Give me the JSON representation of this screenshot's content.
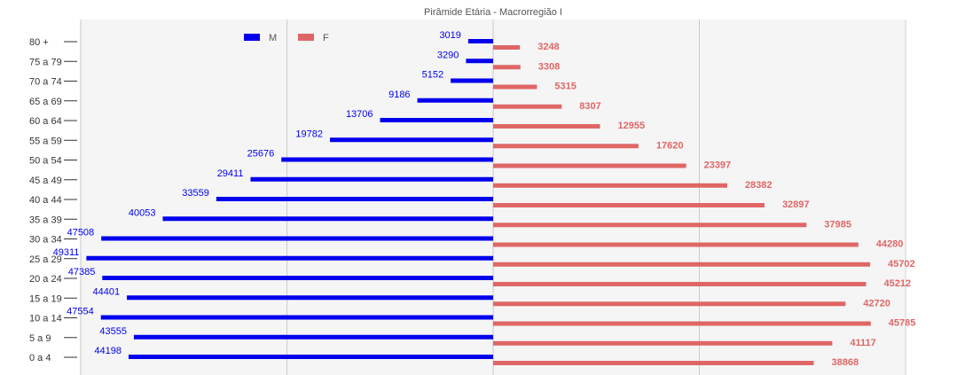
{
  "chart_data": {
    "type": "bar",
    "orientation": "horizontal-pyramid",
    "title": "Pirâmide Etária - Macrorregião I",
    "categories": [
      "0 a 4",
      "5 a 9",
      "10 a 14",
      "15 a 19",
      "20 a 24",
      "25 a 29",
      "30 a 34",
      "35 a 39",
      "40 a 44",
      "45 a 49",
      "50 a 54",
      "55 a 59",
      "60 a 64",
      "65 a 69",
      "70 a 74",
      "75 a 79",
      "80 +"
    ],
    "series": [
      {
        "name": "M",
        "color": "#0000ee",
        "values": [
          44198,
          43555,
          47554,
          44401,
          47385,
          49311,
          47508,
          40053,
          33559,
          29411,
          25676,
          19782,
          13706,
          9186,
          5152,
          3290,
          3019
        ]
      },
      {
        "name": "F",
        "color": "#e06666",
        "values": [
          38868,
          41117,
          45785,
          42720,
          45212,
          45702,
          44280,
          37985,
          32897,
          28382,
          23397,
          17620,
          12955,
          8307,
          5315,
          3308,
          3248
        ]
      }
    ],
    "legend_position": "top-left",
    "grid": true,
    "xlim": [
      -50000,
      50000
    ]
  }
}
